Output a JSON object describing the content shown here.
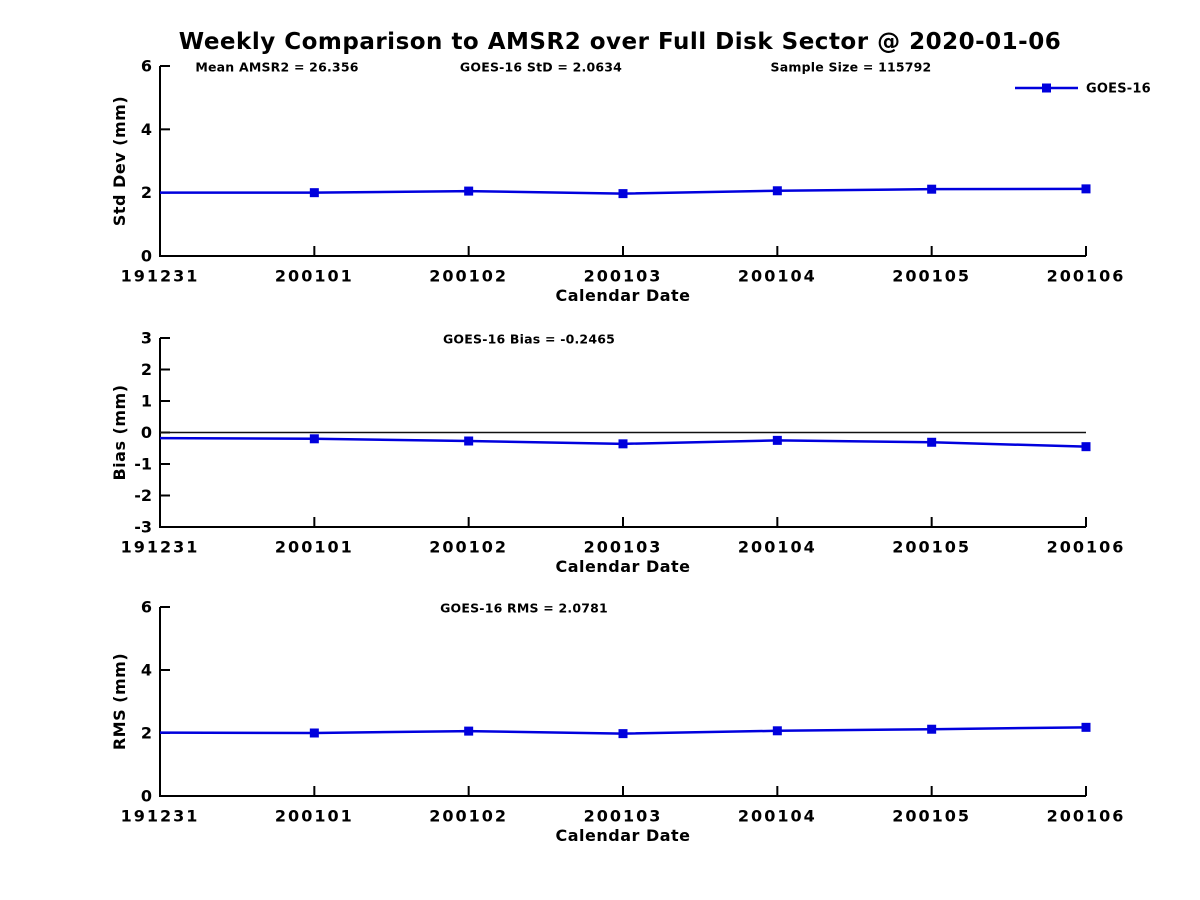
{
  "title": "Weekly Comparison to AMSR2 over Full Disk Sector @ 2020-01-06",
  "colors": {
    "series": "#0000dd",
    "axis": "#000000",
    "zero_line": "#111111",
    "text": "#000000",
    "background": "#ffffff"
  },
  "legend": {
    "label": "GOES-16",
    "marker": "filled-square",
    "position": "top-right"
  },
  "x_axis": {
    "label": "Calendar Date",
    "tick_labels": [
      "191231",
      "200101",
      "200102",
      "200103",
      "200104",
      "200105",
      "200106"
    ]
  },
  "chart_data": [
    {
      "type": "line",
      "name": "std-dev-vs-date",
      "annotations": [
        {
          "text": "Mean AMSR2 = 26.356"
        },
        {
          "text": "GOES-16 StD = 2.0634"
        },
        {
          "text": "Sample Size = 115792"
        }
      ],
      "ylabel": "Std Dev (mm)",
      "xlabel": "Calendar Date",
      "ylim": [
        0,
        6
      ],
      "yticks": [
        0,
        2,
        4,
        6
      ],
      "grid": false,
      "legend_visible": true,
      "x": [
        "191231",
        "200101",
        "200102",
        "200103",
        "200104",
        "200105",
        "200106"
      ],
      "series": [
        {
          "name": "GOES-16",
          "marker": "square",
          "values": [
            2.0,
            2.0,
            2.05,
            1.97,
            2.06,
            2.11,
            2.12
          ]
        }
      ]
    },
    {
      "type": "line",
      "name": "bias-vs-date",
      "annotations": [
        {
          "text": "GOES-16 Bias  = -0.2465"
        }
      ],
      "ylabel": "Bias (mm)",
      "xlabel": "Calendar Date",
      "ylim": [
        -3,
        3
      ],
      "yticks": [
        -3,
        -2,
        -1,
        0,
        1,
        2,
        3
      ],
      "zero_line": true,
      "grid": false,
      "legend_visible": false,
      "x": [
        "191231",
        "200101",
        "200102",
        "200103",
        "200104",
        "200105",
        "200106"
      ],
      "series": [
        {
          "name": "GOES-16",
          "marker": "square",
          "values": [
            -0.18,
            -0.2,
            -0.27,
            -0.36,
            -0.25,
            -0.31,
            -0.45
          ]
        }
      ]
    },
    {
      "type": "line",
      "name": "rms-vs-date",
      "annotations": [
        {
          "text": "GOES-16 RMS = 2.0781"
        }
      ],
      "ylabel": "RMS (mm)",
      "xlabel": "Calendar Date",
      "ylim": [
        0,
        6
      ],
      "yticks": [
        0,
        2,
        4,
        6
      ],
      "grid": false,
      "legend_visible": false,
      "x": [
        "191231",
        "200101",
        "200102",
        "200103",
        "200104",
        "200105",
        "200106"
      ],
      "series": [
        {
          "name": "GOES-16",
          "marker": "square",
          "values": [
            2.01,
            2.0,
            2.06,
            1.98,
            2.07,
            2.12,
            2.18
          ]
        }
      ]
    }
  ]
}
